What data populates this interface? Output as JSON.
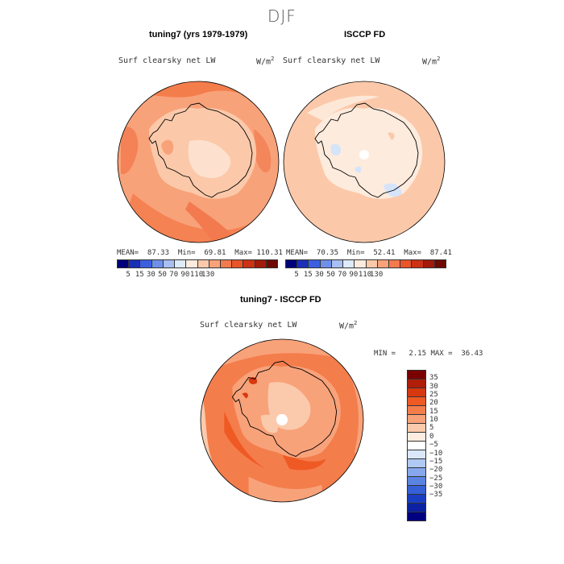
{
  "season": "DJF",
  "panels": [
    {
      "title": "tuning7 (yrs 1979-1979)",
      "field": "Surf clearsky net LW",
      "units": "W/m",
      "units_sup": "2",
      "stats": "MEAN=  87.33  Min=  69.81  Max= 110.31"
    },
    {
      "title": "ISCCP FD",
      "field": "Surf clearsky net LW",
      "units": "W/m",
      "units_sup": "2",
      "stats": "MEAN=  70.35  Min=  52.41  Max=  87.41"
    },
    {
      "title": "tuning7 - ISCCP FD",
      "field": "Surf clearsky net LW",
      "units": "W/m",
      "units_sup": "2",
      "stats": "MIN =   2.15 MAX =  36.43"
    }
  ],
  "colorbar_abs": {
    "tick_labels": [
      "5",
      "15",
      "30",
      "50",
      "70",
      "90",
      "110",
      "130"
    ],
    "colors": [
      "#00007a",
      "#1a2fb5",
      "#3b5fe0",
      "#6f8fe8",
      "#a7bff2",
      "#deebfb",
      "#fdebdd",
      "#fbc9aa",
      "#f8a27a",
      "#f27a4e",
      "#e9542a",
      "#cc3214",
      "#a11a0a",
      "#6e0a04"
    ]
  },
  "colorbar_diff": {
    "tick_labels": [
      "35",
      "30",
      "25",
      "20",
      "15",
      "10",
      "5",
      "0",
      "−5",
      "−10",
      "−15",
      "−20",
      "−25",
      "−30",
      "−35"
    ],
    "colors": [
      "#7a0000",
      "#b01e08",
      "#d8380f",
      "#ef5a24",
      "#f47d4c",
      "#f8a27a",
      "#fbcaac",
      "#fdece0",
      "#ffffff",
      "#dbe8fb",
      "#b0c9f3",
      "#86a7ec",
      "#5b84e2",
      "#3560d6",
      "#1a3ec2",
      "#0b21a1",
      "#000080"
    ]
  }
}
